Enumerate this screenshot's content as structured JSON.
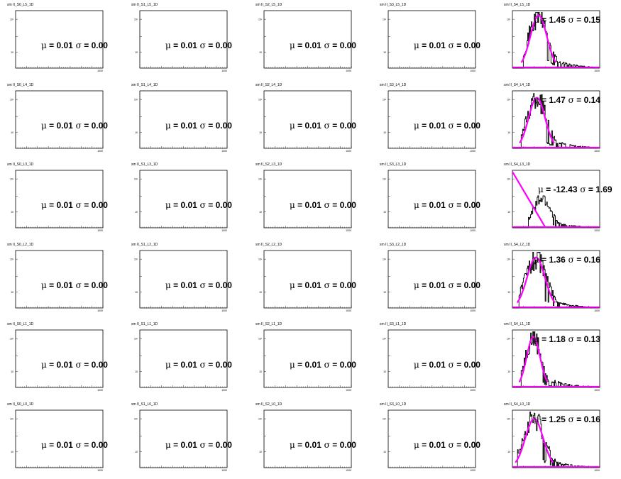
{
  "colors": {
    "histogram": "#000000",
    "fit": "#ff00ff",
    "frame": "#000000"
  },
  "tick_labels": {
    "y_top": "10²",
    "y_mid": "10",
    "x_end": "1000"
  },
  "chart_data": [
    {
      "type": "histogram",
      "title": "sm II_S0_L5_1D",
      "mean_label": "0.01",
      "sigma_label": "0.00",
      "has_data": false
    },
    {
      "type": "histogram",
      "title": "sm II_S1_L5_1D",
      "mean_label": "0.01",
      "sigma_label": "0.00",
      "has_data": false
    },
    {
      "type": "histogram",
      "title": "sm II_S2_L5_1D",
      "mean_label": "0.01",
      "sigma_label": "0.00",
      "has_data": false
    },
    {
      "type": "histogram",
      "title": "sm II_S3_L5_1D",
      "mean_label": "0.01",
      "sigma_label": "0.00",
      "has_data": false
    },
    {
      "type": "histogram",
      "title": "sm II_S4_L5_1D",
      "mean_label": "1.45",
      "sigma_label": "0.15",
      "has_data": true,
      "fit": "gaussian",
      "peak": 0.3,
      "width": 0.11,
      "height": 0.92
    },
    {
      "type": "histogram",
      "title": "sm II_S0_L4_1D",
      "mean_label": "0.01",
      "sigma_label": "0.00",
      "has_data": false
    },
    {
      "type": "histogram",
      "title": "sm II_S1_L4_1D",
      "mean_label": "0.01",
      "sigma_label": "0.00",
      "has_data": false
    },
    {
      "type": "histogram",
      "title": "sm II_S2_L4_1D",
      "mean_label": "0.01",
      "sigma_label": "0.00",
      "has_data": false
    },
    {
      "type": "histogram",
      "title": "sm II_S3_L4_1D",
      "mean_label": "0.01",
      "sigma_label": "0.00",
      "has_data": false
    },
    {
      "type": "histogram",
      "title": "sm II_S4_L4_1D",
      "mean_label": "1.47",
      "sigma_label": "0.14",
      "has_data": true,
      "fit": "gaussian",
      "peak": 0.28,
      "width": 0.11,
      "height": 0.88
    },
    {
      "type": "histogram",
      "title": "sm II_S0_L3_1D",
      "mean_label": "0.01",
      "sigma_label": "0.00",
      "has_data": false
    },
    {
      "type": "histogram",
      "title": "sm II_S1_L3_1D",
      "mean_label": "0.01",
      "sigma_label": "0.00",
      "has_data": false
    },
    {
      "type": "histogram",
      "title": "sm II_S2_L3_1D",
      "mean_label": "0.01",
      "sigma_label": "0.00",
      "has_data": false
    },
    {
      "type": "histogram",
      "title": "sm II_S3_L3_1D",
      "mean_label": "0.01",
      "sigma_label": "0.00",
      "has_data": false
    },
    {
      "type": "histogram",
      "title": "sm II_S4_L3_1D",
      "mean_label": "-12.43",
      "sigma_label": "1.69",
      "has_data": true,
      "fit": "falling-line",
      "peak": 0.34,
      "width": 0.1,
      "height": 0.5
    },
    {
      "type": "histogram",
      "title": "sm II_S0_L2_1D",
      "mean_label": "0.01",
      "sigma_label": "0.00",
      "has_data": false
    },
    {
      "type": "histogram",
      "title": "sm II_S1_L2_1D",
      "mean_label": "0.01",
      "sigma_label": "0.00",
      "has_data": false
    },
    {
      "type": "histogram",
      "title": "sm II_S2_L2_1D",
      "mean_label": "0.01",
      "sigma_label": "0.00",
      "has_data": false
    },
    {
      "type": "histogram",
      "title": "sm II_S3_L2_1D",
      "mean_label": "0.01",
      "sigma_label": "0.00",
      "has_data": false
    },
    {
      "type": "histogram",
      "title": "sm II_S4_L2_1D",
      "mean_label": "1.36",
      "sigma_label": "0.16",
      "has_data": true,
      "fit": "gaussian",
      "peak": 0.27,
      "width": 0.12,
      "height": 0.88
    },
    {
      "type": "histogram",
      "title": "sm II_S0_L1_1D",
      "mean_label": "0.01",
      "sigma_label": "0.00",
      "has_data": false
    },
    {
      "type": "histogram",
      "title": "sm II_S1_L1_1D",
      "mean_label": "0.01",
      "sigma_label": "0.00",
      "has_data": false
    },
    {
      "type": "histogram",
      "title": "sm II_S2_L1_1D",
      "mean_label": "0.01",
      "sigma_label": "0.00",
      "has_data": false
    },
    {
      "type": "histogram",
      "title": "sm II_S3_L1_1D",
      "mean_label": "0.01",
      "sigma_label": "0.00",
      "has_data": false
    },
    {
      "type": "histogram",
      "title": "sm II_S4_L1_1D",
      "mean_label": "1.18",
      "sigma_label": "0.13",
      "has_data": true,
      "fit": "gaussian",
      "peak": 0.24,
      "width": 0.09,
      "height": 0.88
    },
    {
      "type": "histogram",
      "title": "sm II_S0_L0_1D",
      "mean_label": "0.01",
      "sigma_label": "0.00",
      "has_data": false
    },
    {
      "type": "histogram",
      "title": "sm II_S1_L0_1D",
      "mean_label": "0.01",
      "sigma_label": "0.00",
      "has_data": false
    },
    {
      "type": "histogram",
      "title": "sm II_S2_L0_1D",
      "mean_label": "0.01",
      "sigma_label": "0.00",
      "has_data": false
    },
    {
      "type": "histogram",
      "title": "sm II_S3_L0_1D",
      "mean_label": "0.01",
      "sigma_label": "0.00",
      "has_data": false
    },
    {
      "type": "histogram",
      "title": "sm II_S4_L0_1D",
      "mean_label": "1.25",
      "sigma_label": "0.16",
      "has_data": true,
      "fit": "gaussian",
      "peak": 0.25,
      "width": 0.12,
      "height": 0.85
    }
  ]
}
